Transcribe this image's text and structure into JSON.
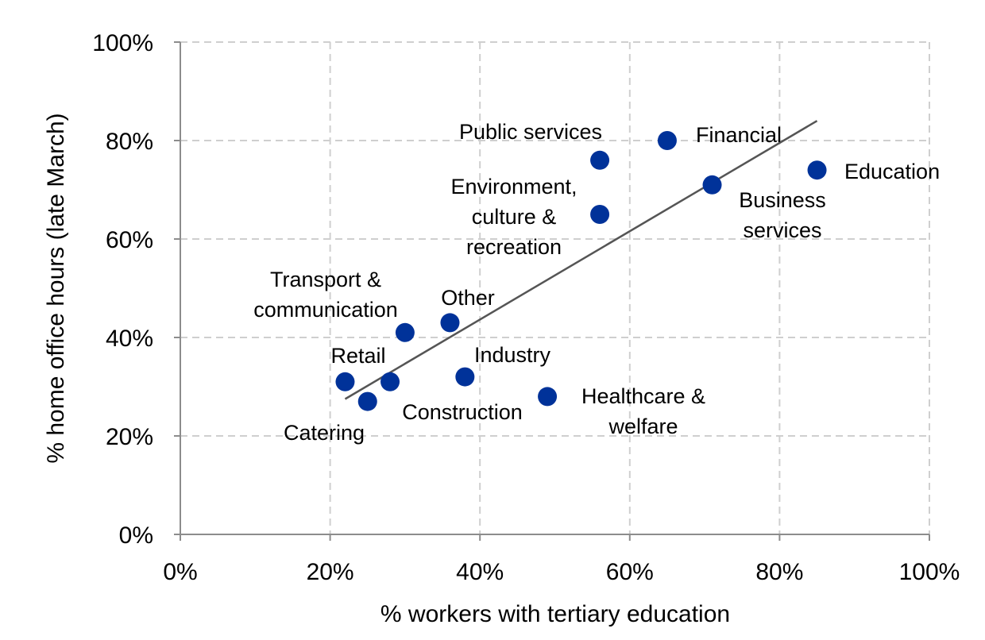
{
  "chart_data": {
    "type": "scatter",
    "xlabel": "% workers with tertiary education",
    "ylabel": "% home office hours (late March)",
    "xlim": [
      0,
      100
    ],
    "ylim": [
      0,
      100
    ],
    "x_ticks": [
      "0%",
      "20%",
      "40%",
      "60%",
      "80%",
      "100%"
    ],
    "y_ticks": [
      "0%",
      "20%",
      "40%",
      "60%",
      "80%",
      "100%"
    ],
    "grid": true,
    "marker_color": "#003299",
    "trendline_color": "#555555",
    "points": [
      {
        "label": "Public services",
        "x": 56,
        "y": 76
      },
      {
        "label": "Financial",
        "x": 65,
        "y": 80
      },
      {
        "label": "Education",
        "x": 85,
        "y": 74
      },
      {
        "label": "Business services",
        "x": 71,
        "y": 71
      },
      {
        "label": "Environment, culture & recreation",
        "x": 56,
        "y": 65
      },
      {
        "label": "Other",
        "x": 36,
        "y": 43
      },
      {
        "label": "Transport & communication",
        "x": 30,
        "y": 41
      },
      {
        "label": "Industry",
        "x": 38,
        "y": 32
      },
      {
        "label": "Retail",
        "x": 22,
        "y": 31
      },
      {
        "label": "Construction",
        "x": 28,
        "y": 31
      },
      {
        "label": "Catering",
        "x": 25,
        "y": 27
      },
      {
        "label": "Healthcare & welfare",
        "x": 49,
        "y": 28
      }
    ],
    "trendline": {
      "x": [
        22,
        85
      ],
      "y": [
        27.5,
        84
      ]
    }
  }
}
